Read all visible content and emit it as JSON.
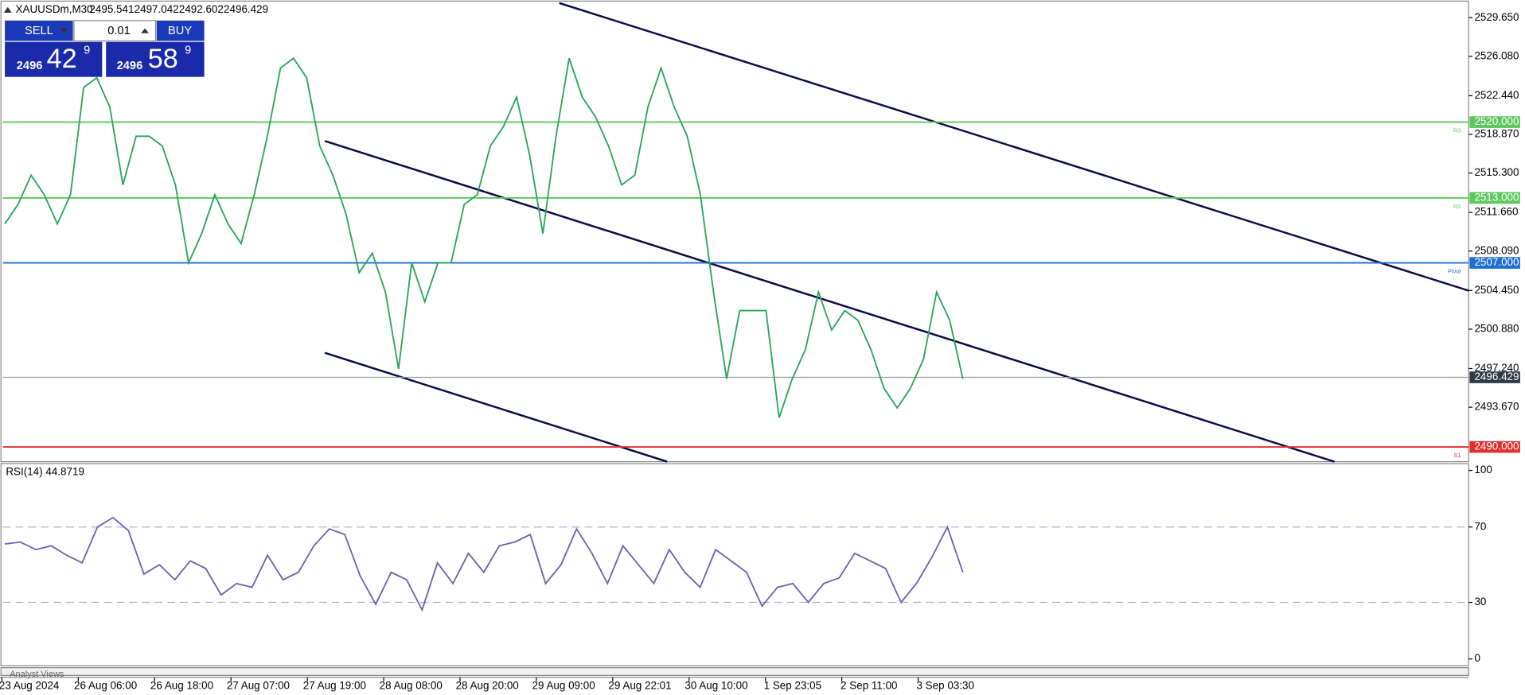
{
  "header": {
    "symbol": "XAUUSDm,M30",
    "ohlc": [
      "2495.541",
      "2497.042",
      "2492.602",
      "2496.429"
    ]
  },
  "trade_panel": {
    "sell": "SELL",
    "buy": "BUY",
    "volume": "0.01",
    "bid": {
      "big": "2496",
      "main": "42",
      "small": "9"
    },
    "ask": {
      "big": "2496",
      "main": "58",
      "small": "9"
    }
  },
  "price_chart": {
    "type": "line",
    "values": [
      2510.6,
      2512.4,
      2515.1,
      2513.3,
      2510.6,
      2513.3,
      2523.2,
      2524.1,
      2521.4,
      2514.2,
      2518.7,
      2518.7,
      2517.8,
      2514.2,
      2507.0,
      2509.7,
      2513.3,
      2510.6,
      2508.8,
      2513.3,
      2518.7,
      2525.0,
      2525.9,
      2524.1,
      2517.8,
      2515.1,
      2511.5,
      2506.1,
      2507.9,
      2504.3,
      2497.2,
      2507.0,
      2503.4,
      2507.0,
      2507.0,
      2512.4,
      2513.3,
      2517.8,
      2519.6,
      2522.3,
      2516.9,
      2509.7,
      2518.7,
      2525.9,
      2522.3,
      2520.5,
      2517.8,
      2514.2,
      2515.1,
      2521.4,
      2525.0,
      2521.4,
      2518.7,
      2513.3,
      2504.3,
      2496.3,
      2502.6,
      2502.6,
      2502.6,
      2492.7,
      2496.3,
      2499.0,
      2504.3,
      2500.8,
      2502.6,
      2501.7,
      2499.0,
      2495.4,
      2493.6,
      2495.4,
      2498.1,
      2504.3,
      2501.7,
      2496.3
    ],
    "ylim": [
      2488.73,
      2531.09
    ],
    "yticks": [
      {
        "value": 2529.65,
        "label": "2529.650"
      },
      {
        "value": 2526.08,
        "label": "2526.080"
      },
      {
        "value": 2522.44,
        "label": "2522.440"
      },
      {
        "value": 2518.87,
        "label": "2518.870"
      },
      {
        "value": 2515.3,
        "label": "2515.300"
      },
      {
        "value": 2511.66,
        "label": "2511.660"
      },
      {
        "value": 2508.09,
        "label": "2508.090"
      },
      {
        "value": 2504.45,
        "label": "2504.450"
      },
      {
        "value": 2500.88,
        "label": "2500.880"
      },
      {
        "value": 2497.24,
        "label": "2497.240"
      },
      {
        "value": 2493.67,
        "label": "2493.670"
      }
    ],
    "levels": [
      {
        "value": 2520,
        "label": "2520.000",
        "tag": "R3",
        "color": "#5ec85e"
      },
      {
        "value": 2513,
        "label": "2513.000",
        "tag": "R2",
        "color": "#5ec85e"
      },
      {
        "value": 2507,
        "label": "2507.000",
        "tag": "Pivot",
        "color": "#1e6fd0"
      },
      {
        "value": 2490,
        "label": "2490.000",
        "tag": "S1",
        "color": "#e03030"
      }
    ],
    "current": {
      "value": 2496.429,
      "label": "2496.429"
    },
    "xlabels": [
      "23 Aug 2024",
      "26 Aug 06:00",
      "26 Aug 18:00",
      "27 Aug 07:00",
      "27 Aug 19:00",
      "28 Aug 08:00",
      "28 Aug 20:00",
      "29 Aug 09:00",
      "29 Aug 22:01",
      "30 Aug 10:00",
      "1 Sep 23:05",
      "2 Sep 11:00",
      "3 Sep 03:30"
    ]
  },
  "rsi": {
    "title": "RSI(14) 44.8719",
    "values": [
      61,
      62,
      58,
      60,
      55,
      51,
      70,
      75,
      68,
      45,
      50,
      42,
      52,
      48,
      34,
      40,
      38,
      55,
      42,
      46,
      60,
      69,
      66,
      44,
      29,
      46,
      42,
      26,
      51,
      40,
      56,
      46,
      60,
      62,
      66,
      40,
      50,
      69,
      56,
      40,
      60,
      50,
      40,
      58,
      46,
      38,
      58,
      52,
      46,
      28,
      38,
      40,
      30,
      40,
      43,
      56,
      52,
      48,
      30,
      40,
      54,
      70,
      46
    ],
    "ylim": [
      -3.6,
      103.1
    ],
    "yticks": [
      100,
      70,
      30,
      0
    ],
    "levels": [
      70,
      30
    ]
  },
  "footer": "Analyst Views"
}
